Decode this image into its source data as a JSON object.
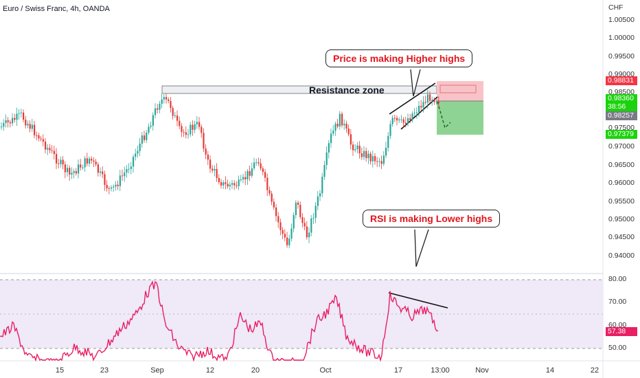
{
  "chart": {
    "title": "Euro / Swiss Franc, 4h, OANDA",
    "currency": "CHF",
    "price_ticks": [
      "1.00500",
      "1.00000",
      "0.99500",
      "0.99000",
      "0.98500",
      "0.98000",
      "0.97500",
      "0.97000",
      "0.96500",
      "0.96000",
      "0.95500",
      "0.95000",
      "0.94500",
      "0.94000"
    ],
    "rsi_ticks": [
      "80.00",
      "70.00",
      "60.00",
      "50.00"
    ],
    "x_ticks": [
      "15",
      "23",
      "Sep",
      "12",
      "20",
      "Oct",
      "17",
      "13:00",
      "Nov",
      "14",
      "22"
    ]
  },
  "price_tags": {
    "stop": "0.98831",
    "last_price": "0.98360",
    "countdown": "38:56",
    "entry": "0.98257",
    "target": "0.97379",
    "rsi_value": "57.38"
  },
  "annotations": {
    "resistance": "Resistance zone",
    "price_callout": "Price is making Higher highs",
    "rsi_callout": "RSI is making Lower highs"
  },
  "colors": {
    "up": "#26a69a",
    "down": "#e53935",
    "rsi_line": "#e91e63",
    "rsi_band": "#efe9f8",
    "stop_zone": "#f8c3c8",
    "target_zone": "#8fd394",
    "last_price_tag": "#1bd30d"
  }
}
